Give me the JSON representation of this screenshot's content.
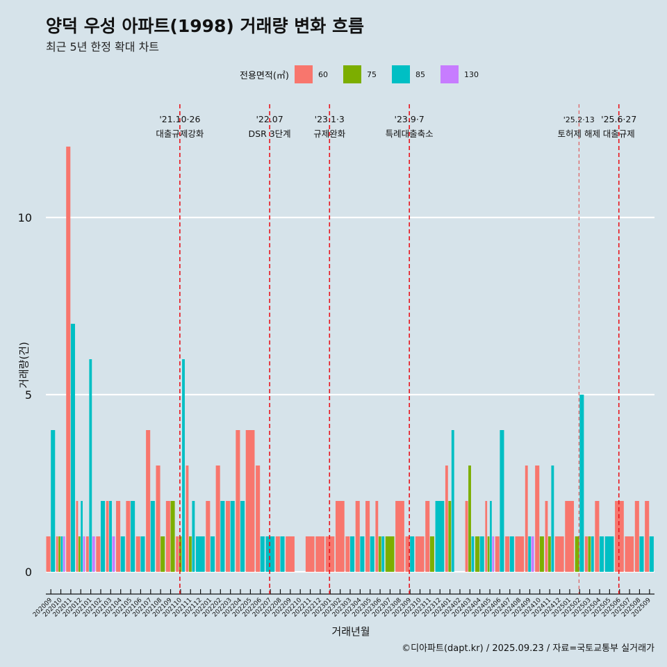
{
  "header": {
    "title": "양덕 우성 아파트(1998) 거래량 변화 흐름",
    "subtitle": "최근 5년 한정 확대 차트"
  },
  "legend": {
    "title": "전용면적(㎡)",
    "items": [
      {
        "label": "60",
        "color": "#F8766D"
      },
      {
        "label": "75",
        "color": "#7CAE00"
      },
      {
        "label": "85",
        "color": "#00BFC4"
      },
      {
        "label": "130",
        "color": "#C77CFF"
      }
    ]
  },
  "caption": "©디아파트(dapt.kr) / 2025.09.23 / 자료=국토교통부 실거래가",
  "chart_data": {
    "type": "bar",
    "title": "양덕 우성 아파트(1998) 거래량 변화 흐름",
    "subtitle": "최근 5년 한정 확대 차트",
    "xlabel": "거래년월",
    "ylabel": "거래량(건)",
    "ylim": [
      -0.6,
      12.5
    ],
    "yticks": [
      0,
      5,
      10
    ],
    "grid": true,
    "legend_position": "top",
    "categories": [
      "202009",
      "202010",
      "202011",
      "202012",
      "202101",
      "202102",
      "202103",
      "202104",
      "202105",
      "202106",
      "202107",
      "202108",
      "202109",
      "202110",
      "202111",
      "202112",
      "202201",
      "202202",
      "202203",
      "202204",
      "202205",
      "202206",
      "202207",
      "202208",
      "202209",
      "202210",
      "202211",
      "202212",
      "202301",
      "202302",
      "202303",
      "202304",
      "202305",
      "202306",
      "202307",
      "202308",
      "202309",
      "202310",
      "202311",
      "202312",
      "202401",
      "202402",
      "202403",
      "202404",
      "202405",
      "202406",
      "202407",
      "202408",
      "202409",
      "202410",
      "202411",
      "202412",
      "202501",
      "202502",
      "202503",
      "202504",
      "202505",
      "202506",
      "202507",
      "202508",
      "202509"
    ],
    "series": [
      {
        "name": "60",
        "values": [
          1,
          1,
          12,
          2,
          1,
          1,
          2,
          2,
          2,
          1,
          4,
          3,
          2,
          1,
          3,
          0,
          2,
          3,
          2,
          4,
          4,
          3,
          0,
          1,
          1,
          0,
          1,
          1,
          1,
          2,
          1,
          2,
          2,
          2,
          0,
          2,
          1,
          1,
          2,
          0,
          3,
          0,
          2,
          0,
          2,
          1,
          1,
          1,
          3,
          3,
          2,
          1,
          2,
          0,
          1,
          2,
          0,
          2,
          1,
          2,
          2
        ]
      },
      {
        "name": "75",
        "values": [
          0,
          1,
          0,
          1,
          0,
          0,
          0,
          0,
          0,
          0,
          0,
          1,
          2,
          1,
          1,
          0,
          0,
          0,
          0,
          0,
          0,
          0,
          0,
          0,
          0,
          0,
          0,
          0,
          0,
          0,
          0,
          0,
          0,
          1,
          1,
          0,
          0,
          0,
          1,
          0,
          2,
          0,
          3,
          1,
          1,
          0,
          0,
          0,
          0,
          1,
          1,
          0,
          0,
          1,
          1,
          0,
          0,
          0,
          0,
          0,
          0
        ]
      },
      {
        "name": "85",
        "values": [
          4,
          1,
          7,
          2,
          6,
          2,
          2,
          1,
          2,
          1,
          2,
          0,
          0,
          6,
          2,
          1,
          1,
          2,
          2,
          2,
          0,
          1,
          1,
          1,
          0,
          0,
          0,
          0,
          0,
          0,
          1,
          1,
          1,
          1,
          0,
          0,
          1,
          0,
          0,
          2,
          4,
          0,
          1,
          1,
          2,
          4,
          1,
          0,
          1,
          0,
          3,
          0,
          0,
          5,
          1,
          1,
          1,
          0,
          0,
          1,
          1
        ]
      },
      {
        "name": "130",
        "values": [
          0,
          1,
          0,
          1,
          1,
          0,
          1,
          0,
          0,
          0,
          0,
          0,
          0,
          0,
          0,
          0,
          0,
          0,
          0,
          0,
          0,
          0,
          0,
          0,
          0,
          0,
          0,
          0,
          0,
          0,
          0,
          0,
          0,
          0,
          0,
          0,
          0,
          0,
          0,
          0,
          0,
          0,
          0,
          0,
          1,
          0,
          0,
          0,
          1,
          0,
          0,
          0,
          0,
          0,
          0,
          0,
          0,
          0,
          0,
          0,
          0
        ]
      }
    ],
    "annotations": [
      {
        "month": "202110",
        "date": "'21.10·26",
        "label": "대출규제강화",
        "style": "dashed"
      },
      {
        "month": "202207",
        "date": "'22.07",
        "label": "DSR 3단계",
        "style": "dashed"
      },
      {
        "month": "202301",
        "date": "'23.1·3",
        "label": "규제완화",
        "style": "dashed"
      },
      {
        "month": "202309",
        "date": "'23.9·7",
        "label": "특례대출축소",
        "style": "dashed"
      },
      {
        "month": "202502",
        "date": "'25.2·13",
        "label": "토허제 해제",
        "style": "thin-dashed"
      },
      {
        "month": "202506",
        "date": "'25.6·27",
        "label": "대출규제",
        "style": "dashed"
      }
    ]
  }
}
